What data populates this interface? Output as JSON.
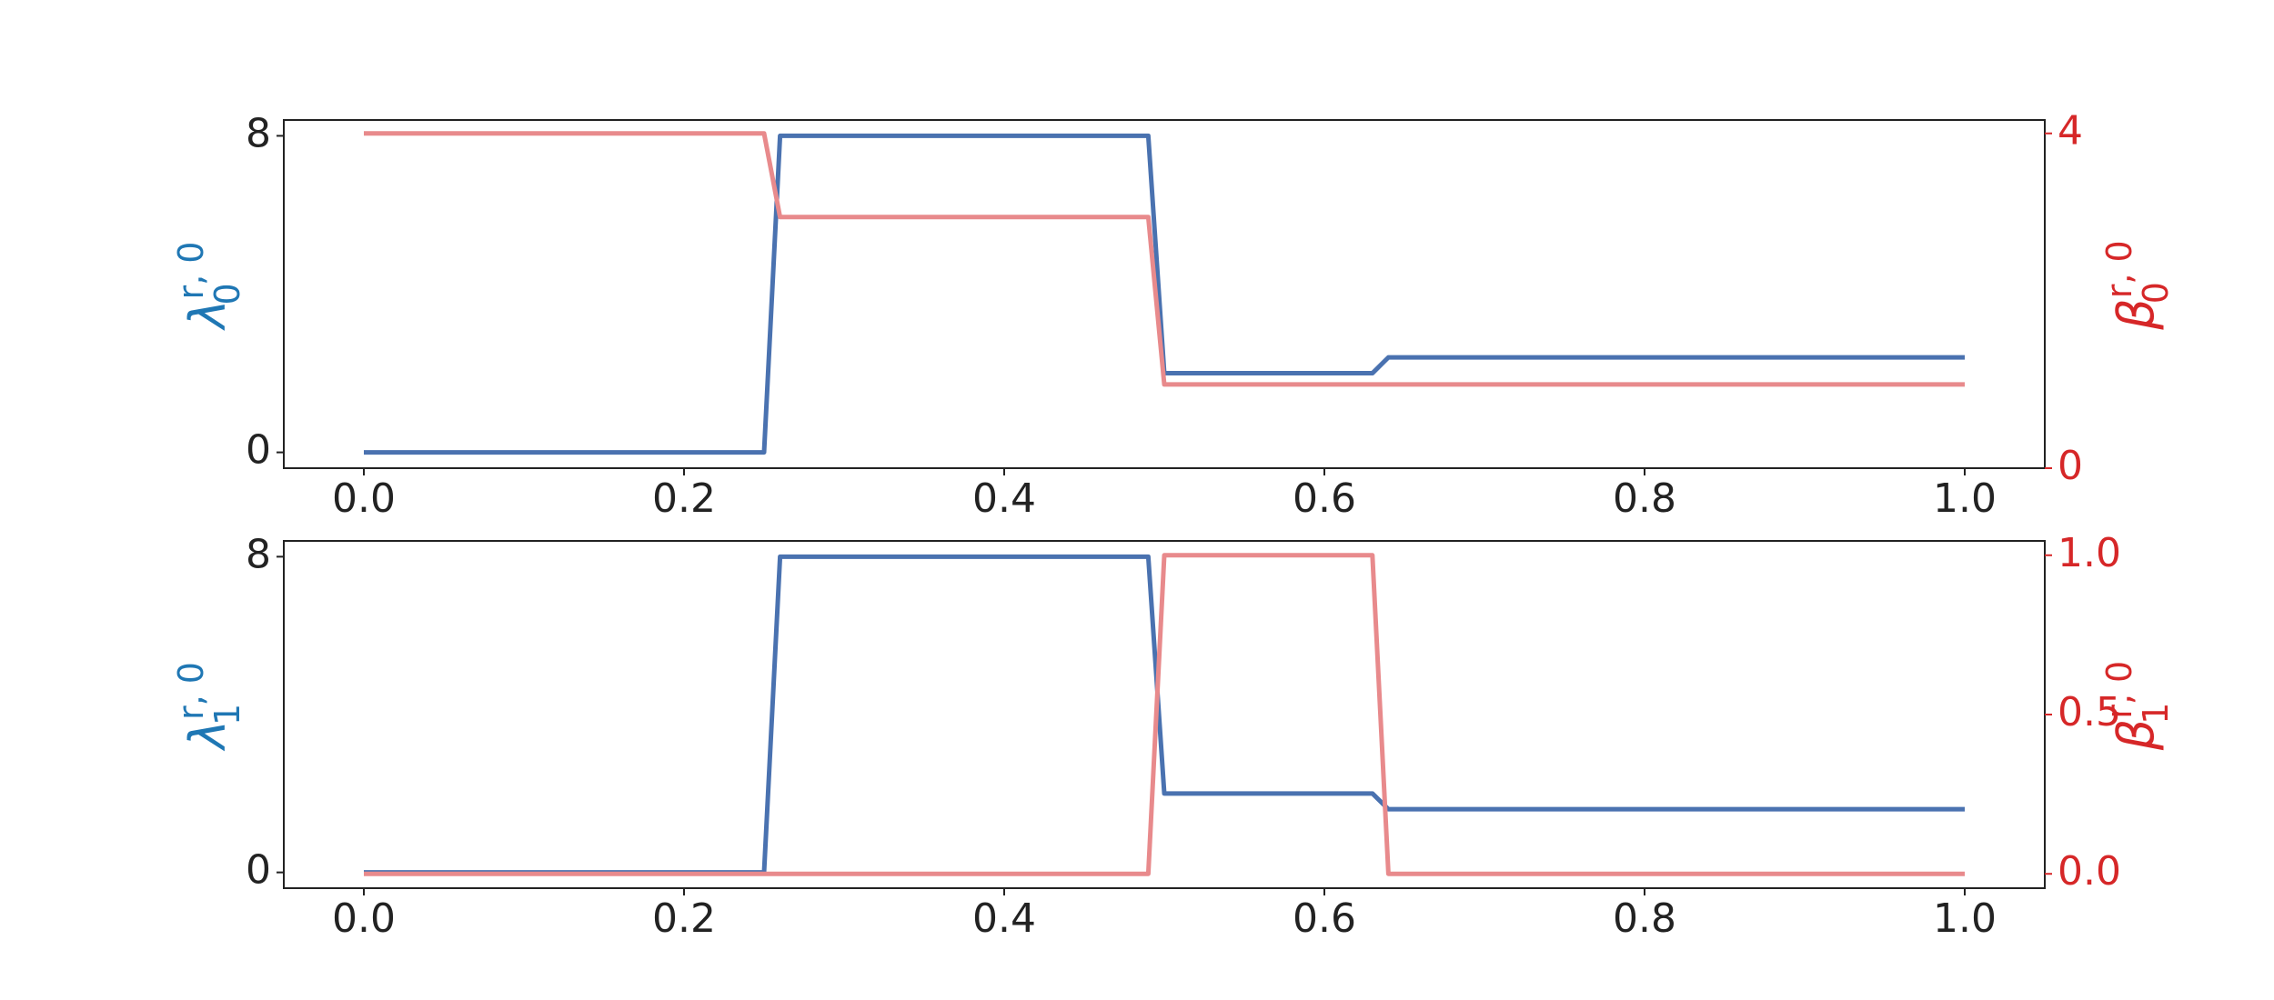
{
  "chart_data": [
    {
      "type": "line",
      "x": [
        0,
        0.25,
        0.26,
        0.49,
        0.5,
        0.63,
        0.64,
        1.0
      ],
      "series": [
        {
          "color": "#4a72b0",
          "values": [
            0,
            0,
            8,
            8,
            2,
            2,
            2.4,
            2.4
          ]
        },
        {
          "color": "#e88a8c",
          "values": [
            4,
            4,
            3,
            3,
            1,
            1,
            1,
            1
          ],
          "axis": "y2"
        }
      ],
      "xlim": [
        -0.05,
        1.05
      ],
      "xticks": [
        {
          "value": 0,
          "label": "0.0"
        },
        {
          "value": 0.2,
          "label": "0.2"
        },
        {
          "value": 0.4,
          "label": "0.4"
        },
        {
          "value": 0.6,
          "label": "0.6"
        },
        {
          "value": 0.8,
          "label": "0.8"
        },
        {
          "value": 1.0,
          "label": "1.0"
        }
      ],
      "ylim": [
        -0.4,
        8.4
      ],
      "yticks": [
        0,
        8
      ],
      "y2lim": [
        0,
        4.16
      ],
      "y2ticks": [
        0,
        4
      ],
      "ylabel": {
        "base": "λ",
        "sup": "r, 0",
        "sub": "0",
        "color": "#1f77b4"
      },
      "y2label": {
        "base": "β",
        "sup": "r, 0",
        "sub": "0",
        "color": "#d62728"
      }
    },
    {
      "type": "line",
      "x": [
        0,
        0.25,
        0.26,
        0.49,
        0.5,
        0.63,
        0.64,
        1.0
      ],
      "series": [
        {
          "color": "#4a72b0",
          "values": [
            0,
            0,
            8,
            8,
            2,
            2,
            1.6,
            1.6
          ]
        },
        {
          "color": "#e88a8c",
          "values": [
            0,
            0,
            0,
            0,
            1,
            1,
            0,
            0
          ],
          "axis": "y2"
        }
      ],
      "xlim": [
        -0.05,
        1.05
      ],
      "xticks": [
        {
          "value": 0,
          "label": "0.0"
        },
        {
          "value": 0.2,
          "label": "0.2"
        },
        {
          "value": 0.4,
          "label": "0.4"
        },
        {
          "value": 0.6,
          "label": "0.6"
        },
        {
          "value": 0.8,
          "label": "0.8"
        },
        {
          "value": 1.0,
          "label": "1.0"
        }
      ],
      "ylim": [
        -0.4,
        8.4
      ],
      "yticks": [
        0,
        8
      ],
      "y2lim": [
        -0.045,
        1.045
      ],
      "y2ticks": [
        {
          "value": 0,
          "label": "0.0"
        },
        {
          "value": 0.5,
          "label": "0.5"
        },
        {
          "value": 1.0,
          "label": "1.0"
        }
      ],
      "ylabel": {
        "base": "λ",
        "sup": "r, 0",
        "sub": "1",
        "color": "#1f77b4"
      },
      "y2label": {
        "base": "β",
        "sup": "r, 0",
        "sub": "1",
        "color": "#d62728"
      }
    }
  ]
}
